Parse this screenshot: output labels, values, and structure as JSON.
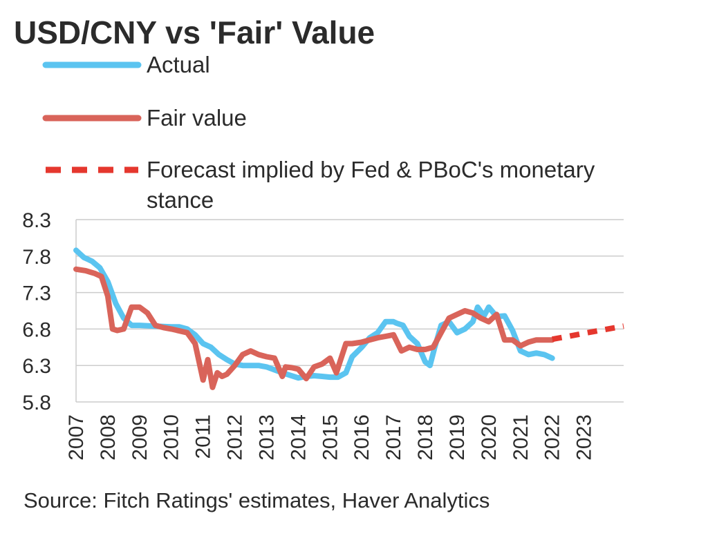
{
  "chart_data": {
    "type": "line",
    "title": "USD/CNY vs 'Fair' Value",
    "source": "Source: Fitch Ratings' estimates, Haver Analytics",
    "ylim": [
      5.8,
      8.3
    ],
    "yticks": [
      "8.3",
      "7.8",
      "7.3",
      "6.8",
      "6.3",
      "5.8"
    ],
    "xlim": [
      2007,
      2024.25
    ],
    "xticks": [
      "2007",
      "2008",
      "2009",
      "2010",
      "2011",
      "2012",
      "2013",
      "2014",
      "2015",
      "2016",
      "2017",
      "2018",
      "2019",
      "2020",
      "2021",
      "2022",
      "2023"
    ],
    "legend": [
      {
        "label": "Actual",
        "color": "#5bc4f0",
        "style": "solid"
      },
      {
        "label": "Fair value",
        "color": "#d9645a",
        "style": "solid"
      },
      {
        "label": "Forecast implied by Fed & PBoC's monetary",
        "label2": "stance",
        "color": "#e5372e",
        "style": "dashed"
      }
    ],
    "series": [
      {
        "name": "Actual",
        "color": "#5bc4f0",
        "x": [
          2007.0,
          2007.25,
          2007.5,
          2007.75,
          2008.0,
          2008.25,
          2008.5,
          2008.75,
          2009.0,
          2009.5,
          2010.0,
          2010.25,
          2010.5,
          2010.75,
          2011.0,
          2011.25,
          2011.5,
          2011.75,
          2012.0,
          2012.25,
          2012.5,
          2012.75,
          2013.0,
          2013.5,
          2014.0,
          2014.25,
          2014.5,
          2014.75,
          2015.0,
          2015.25,
          2015.5,
          2015.7,
          2016.0,
          2016.25,
          2016.5,
          2016.75,
          2017.0,
          2017.1,
          2017.3,
          2017.5,
          2017.75,
          2018.0,
          2018.15,
          2018.3,
          2018.5,
          2018.75,
          2019.0,
          2019.25,
          2019.5,
          2019.65,
          2019.85,
          2020.0,
          2020.25,
          2020.5,
          2020.75,
          2021.0,
          2021.25,
          2021.5,
          2021.75,
          2022.0
        ],
        "values": [
          7.88,
          7.78,
          7.73,
          7.64,
          7.45,
          7.15,
          6.95,
          6.85,
          6.85,
          6.84,
          6.83,
          6.83,
          6.8,
          6.72,
          6.6,
          6.55,
          6.45,
          6.38,
          6.32,
          6.3,
          6.3,
          6.3,
          6.28,
          6.2,
          6.13,
          6.15,
          6.16,
          6.15,
          6.14,
          6.14,
          6.2,
          6.42,
          6.55,
          6.68,
          6.75,
          6.9,
          6.9,
          6.88,
          6.85,
          6.7,
          6.6,
          6.35,
          6.3,
          6.55,
          6.85,
          6.9,
          6.75,
          6.8,
          6.9,
          7.1,
          6.98,
          7.1,
          6.97,
          6.98,
          6.78,
          6.5,
          6.45,
          6.47,
          6.45,
          6.4
        ]
      },
      {
        "name": "Fair value",
        "color": "#d9645a",
        "x": [
          2007.0,
          2007.3,
          2007.6,
          2007.8,
          2008.0,
          2008.15,
          2008.3,
          2008.5,
          2008.75,
          2009.0,
          2009.25,
          2009.5,
          2009.75,
          2010.0,
          2010.5,
          2010.75,
          2011.0,
          2011.15,
          2011.3,
          2011.45,
          2011.6,
          2011.75,
          2012.0,
          2012.25,
          2012.5,
          2012.75,
          2013.0,
          2013.25,
          2013.5,
          2013.6,
          2013.8,
          2014.0,
          2014.25,
          2014.5,
          2014.75,
          2015.0,
          2015.2,
          2015.5,
          2015.7,
          2016.0,
          2016.25,
          2016.5,
          2016.75,
          2017.0,
          2017.25,
          2017.5,
          2017.75,
          2018.0,
          2018.25,
          2018.5,
          2018.75,
          2019.0,
          2019.25,
          2019.5,
          2019.75,
          2020.0,
          2020.25,
          2020.5,
          2020.75,
          2021.0,
          2021.25,
          2021.5,
          2021.75,
          2022.0
        ],
        "values": [
          7.62,
          7.6,
          7.56,
          7.52,
          7.25,
          6.8,
          6.78,
          6.8,
          7.1,
          7.1,
          7.02,
          6.85,
          6.82,
          6.8,
          6.75,
          6.6,
          6.1,
          6.38,
          6.0,
          6.2,
          6.15,
          6.18,
          6.3,
          6.45,
          6.5,
          6.45,
          6.42,
          6.4,
          6.15,
          6.28,
          6.27,
          6.25,
          6.12,
          6.28,
          6.32,
          6.4,
          6.2,
          6.6,
          6.6,
          6.62,
          6.65,
          6.68,
          6.7,
          6.72,
          6.5,
          6.55,
          6.52,
          6.52,
          6.55,
          6.75,
          6.95,
          7.0,
          7.05,
          7.02,
          6.95,
          6.9,
          7.0,
          6.65,
          6.65,
          6.57,
          6.62,
          6.65,
          6.65,
          6.65
        ]
      },
      {
        "name": "Forecast implied by Fed & PBoC's monetary stance",
        "color": "#e5372e",
        "style": "dashed",
        "x": [
          2022.0,
          2022.5,
          2023.0,
          2023.5,
          2024.25
        ],
        "values": [
          6.66,
          6.7,
          6.74,
          6.78,
          6.84
        ]
      }
    ]
  }
}
